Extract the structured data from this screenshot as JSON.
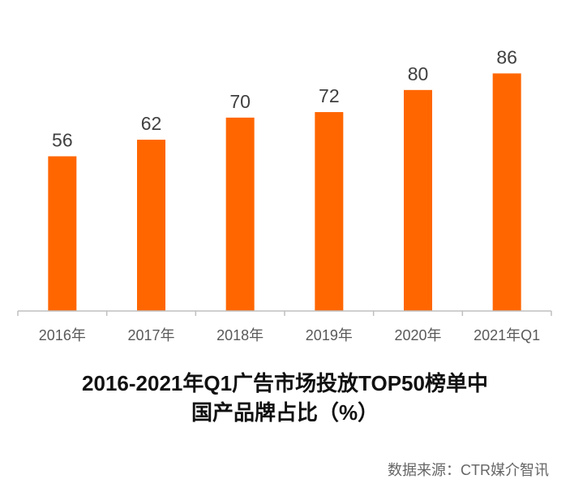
{
  "chart_data": {
    "type": "bar",
    "categories": [
      "2016年",
      "2017年",
      "2018年",
      "2019年",
      "2020年",
      "2021年Q1"
    ],
    "values": [
      56,
      62,
      70,
      72,
      80,
      86
    ],
    "ylim": [
      0,
      92
    ],
    "bar_color": "#ff6600",
    "title_line1": "2016-2021年Q1广告市场投放TOP50榜单中",
    "title_line2": "国产品牌占比（%）",
    "source": "数据来源：CTR媒介智讯",
    "grid": false,
    "legend": "none"
  }
}
